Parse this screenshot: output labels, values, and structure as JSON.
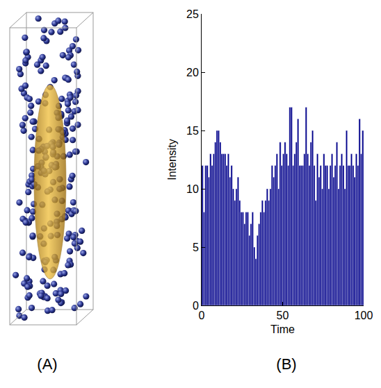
{
  "figure": {
    "panel_labels": [
      "(A)",
      "(B)"
    ]
  },
  "chart_data": {
    "type": "histogram",
    "x_label": "Time",
    "y_label": "Intensity",
    "bins": [
      0,
      1,
      2,
      3,
      4,
      5,
      6,
      7,
      8,
      9,
      10,
      11,
      12,
      13,
      14,
      15,
      16,
      17,
      18,
      19,
      20,
      21,
      22,
      23,
      24,
      25,
      26,
      27,
      28,
      29,
      30,
      31,
      32,
      33,
      34,
      35,
      36,
      37,
      38,
      39,
      40,
      41,
      42,
      43,
      44,
      45,
      46,
      47,
      48,
      49,
      50,
      51,
      52,
      53,
      54,
      55,
      56,
      57,
      58,
      59,
      60,
      61,
      62,
      63,
      64,
      65,
      66,
      67,
      68,
      69,
      70,
      71,
      72,
      73,
      74,
      75,
      76,
      77,
      78,
      79,
      80,
      81,
      82,
      83,
      84,
      85,
      86,
      87,
      88,
      89,
      90,
      91,
      92,
      93,
      94,
      95,
      96,
      97,
      98,
      99,
      100
    ],
    "values": [
      12,
      8,
      12,
      12,
      11,
      13,
      12,
      13,
      14,
      15,
      15,
      14,
      13,
      13,
      13,
      12,
      13,
      11,
      12,
      10,
      9,
      10,
      11,
      9,
      8,
      8,
      7,
      8,
      8,
      6,
      7,
      8,
      5,
      4,
      6,
      7,
      8,
      9,
      8,
      9,
      10,
      9,
      10,
      12,
      11,
      12,
      13,
      10,
      14,
      12,
      13,
      14,
      13,
      12,
      17,
      17,
      12,
      13,
      14,
      16,
      12,
      12,
      12,
      13,
      17,
      13,
      12,
      14,
      15,
      12,
      9,
      13,
      11,
      12,
      10,
      13,
      12,
      12,
      10,
      12,
      13,
      11,
      12,
      14,
      10,
      12,
      13,
      12,
      10,
      15,
      12,
      12,
      13,
      12,
      11,
      13,
      12,
      16,
      13,
      15
    ],
    "color": "#00008b",
    "xlim": [
      0,
      100
    ],
    "xticks": [
      0,
      50,
      100
    ],
    "ylim": [
      0,
      25
    ],
    "yticks": [
      0,
      5,
      10,
      15,
      20,
      25
    ],
    "grid": false
  }
}
